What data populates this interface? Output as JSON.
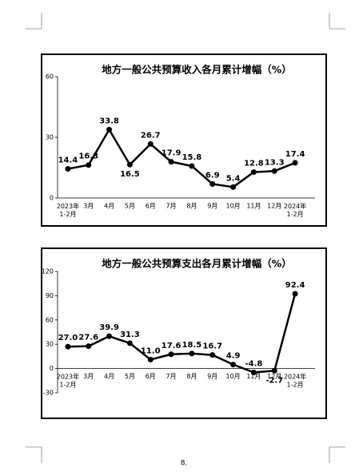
{
  "chart_data": [
    {
      "type": "line",
      "title": "地方一般公共预算收入各月累计增幅（%）",
      "categories": [
        "2023年\n1-2月",
        "3月",
        "4月",
        "5月",
        "6月",
        "7月",
        "8月",
        "9月",
        "10月",
        "11月",
        "12月",
        "2024年\n1-2月"
      ],
      "values": [
        14.4,
        16.3,
        33.8,
        16.5,
        26.7,
        17.9,
        15.8,
        6.9,
        5.4,
        12.8,
        13.3,
        17.4
      ],
      "color": "#000000",
      "ylim": [
        0,
        60
      ],
      "yticks": [
        0,
        30,
        60
      ]
    },
    {
      "type": "line",
      "title": "地方一般公共预算支出各月累计增幅（%）",
      "categories": [
        "2023年\n1-2月",
        "3月",
        "4月",
        "5月",
        "6月",
        "7月",
        "8月",
        "9月",
        "10月",
        "11月",
        "12月",
        "2024年\n1-2月"
      ],
      "values": [
        27.0,
        27.6,
        39.9,
        31.3,
        11.0,
        17.6,
        18.5,
        16.7,
        4.9,
        -4.8,
        -2.7,
        92.4
      ],
      "value_labels": [
        "27.0",
        "27.6",
        "39.9",
        "31.3",
        "11.0",
        "17.6",
        "18.5",
        "16.7",
        "4.9",
        "-4.8",
        "-2.7",
        "92.4"
      ],
      "color": "#000000",
      "ylim": [
        -30,
        120
      ],
      "yticks": [
        -30,
        0,
        30,
        60,
        90,
        120
      ]
    }
  ],
  "page_number": "8."
}
